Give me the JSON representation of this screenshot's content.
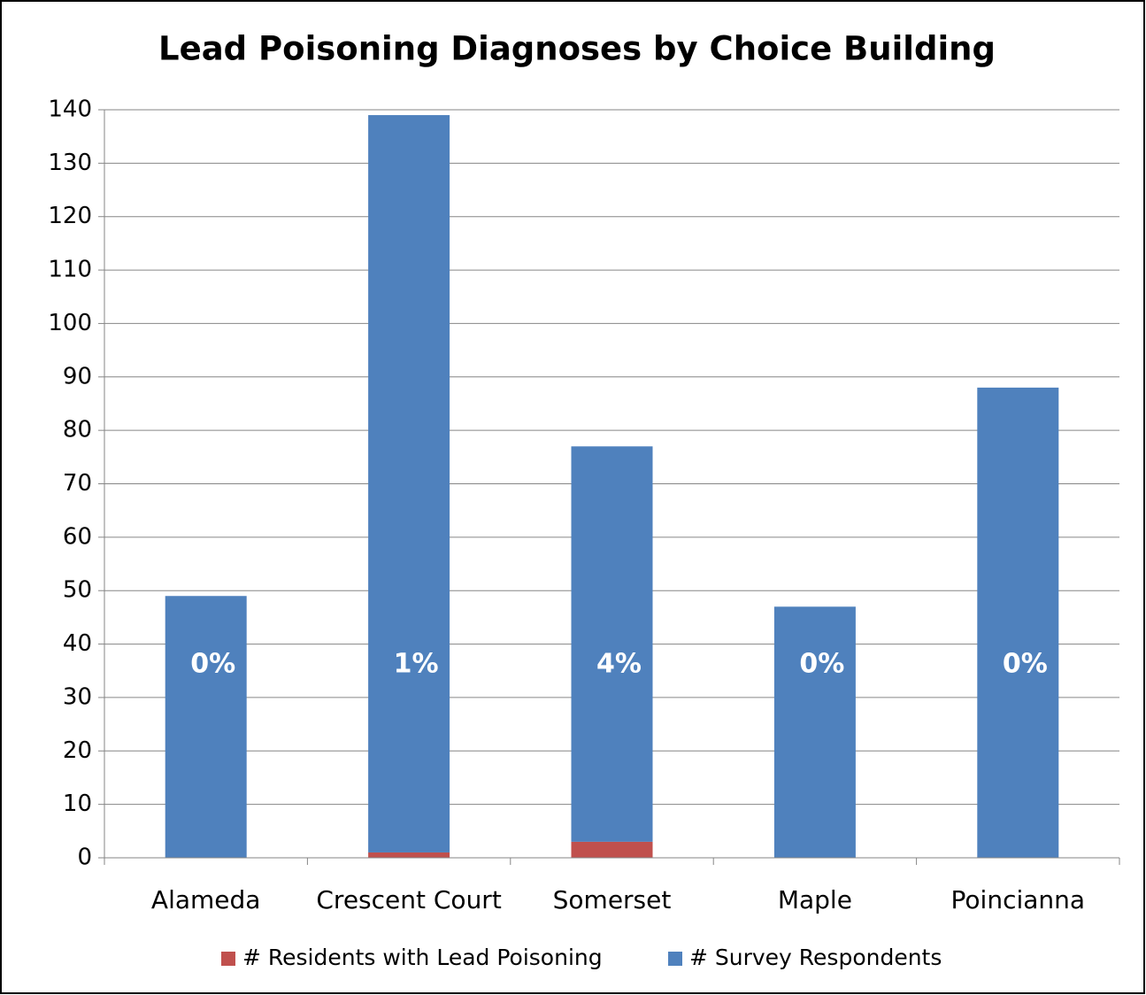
{
  "chart_data": {
    "type": "stacked_bar",
    "title": "Lead Poisoning Diagnoses by Choice Building",
    "categories": [
      "Alameda",
      "Crescent Court",
      "Somerset",
      "Maple",
      "Poincianna"
    ],
    "series": [
      {
        "name": "# Residents with Lead Poisoning",
        "color": "#c0504d",
        "values": [
          0,
          1,
          3,
          0,
          0
        ]
      },
      {
        "name": "# Survey Respondents",
        "color": "#4f81bd",
        "values": [
          49,
          138,
          74,
          47,
          88
        ]
      }
    ],
    "percent_labels": [
      "0%",
      "1%",
      "4%",
      "0%",
      "0%"
    ],
    "ylim": [
      0,
      140
    ],
    "yticks": [
      0,
      10,
      20,
      30,
      40,
      50,
      60,
      70,
      80,
      90,
      100,
      110,
      120,
      130,
      140
    ],
    "grid": true,
    "legend": "bottom"
  }
}
